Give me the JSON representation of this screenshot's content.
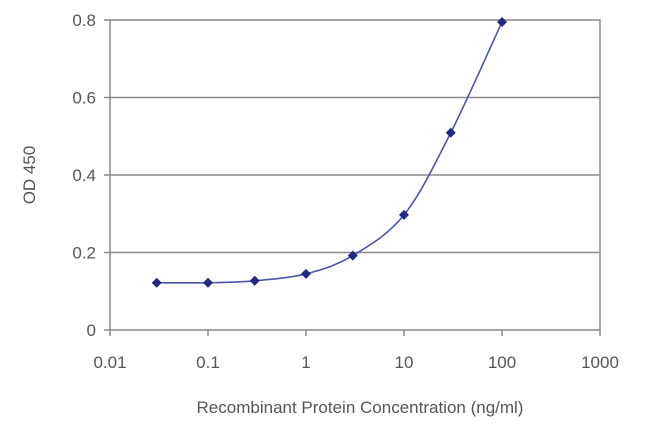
{
  "chart_data": {
    "type": "line",
    "title": "",
    "xlabel": "Recombinant Protein Concentration (ng/ml)",
    "ylabel": "OD 450",
    "x_scale": "log",
    "xlim": [
      0.01,
      1000
    ],
    "ylim": [
      0,
      0.8
    ],
    "x_ticks": [
      0.01,
      0.1,
      1,
      10,
      100,
      1000
    ],
    "x_tick_labels": [
      "0.01",
      "0.1",
      "1",
      "10",
      "100",
      "1000"
    ],
    "y_ticks": [
      0,
      0.2,
      0.4,
      0.6,
      0.8
    ],
    "y_tick_labels": [
      "0",
      "0.2",
      "0.4",
      "0.6",
      "0.8"
    ],
    "grid": "horizontal",
    "legend": "none",
    "series": [
      {
        "color": "#1f2a80",
        "x": [
          0.03,
          0.1,
          0.3,
          1,
          3,
          10,
          30,
          100
        ],
        "y": [
          0.122,
          0.122,
          0.127,
          0.145,
          0.192,
          0.297,
          0.509,
          0.795
        ]
      }
    ]
  }
}
